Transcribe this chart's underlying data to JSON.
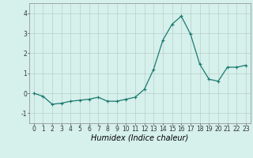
{
  "x": [
    0,
    1,
    2,
    3,
    4,
    5,
    6,
    7,
    8,
    9,
    10,
    11,
    12,
    13,
    14,
    15,
    16,
    17,
    18,
    19,
    20,
    21,
    22,
    23
  ],
  "y": [
    0.0,
    -0.15,
    -0.55,
    -0.5,
    -0.4,
    -0.35,
    -0.3,
    -0.2,
    -0.4,
    -0.4,
    -0.3,
    -0.2,
    0.2,
    1.2,
    2.65,
    3.45,
    3.85,
    2.95,
    1.45,
    0.7,
    0.6,
    1.3,
    1.3,
    1.4
  ],
  "line_color": "#1a7a6e",
  "marker": "+",
  "marker_size": 3,
  "line_width": 0.9,
  "background_color": "#d6f0ec",
  "grid_color": "#b8d0cc",
  "xlabel": "Humidex (Indice chaleur)",
  "xlabel_style": "italic",
  "xlabel_fontsize": 7,
  "ylim": [
    -1.5,
    4.5
  ],
  "xlim": [
    -0.5,
    23.5
  ],
  "yticks": [
    -1,
    0,
    1,
    2,
    3,
    4
  ],
  "xticks": [
    0,
    1,
    2,
    3,
    4,
    5,
    6,
    7,
    8,
    9,
    10,
    11,
    12,
    13,
    14,
    15,
    16,
    17,
    18,
    19,
    20,
    21,
    22,
    23
  ],
  "tick_fontsize": 5.5,
  "spine_color": "#888888"
}
